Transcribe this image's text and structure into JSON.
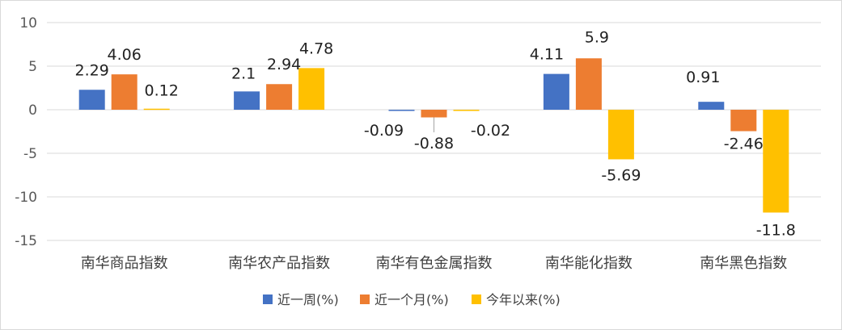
{
  "chart_data": {
    "type": "bar",
    "categories": [
      "南华商品指数",
      "南华农产品指数",
      "南华有色金属指数",
      "南华能化指数",
      "南华黑色指数"
    ],
    "series": [
      {
        "name": "近一周(%)",
        "color": "#4472C4",
        "values": [
          2.29,
          2.1,
          -0.09,
          4.11,
          0.91
        ]
      },
      {
        "name": "近一个月(%)",
        "color": "#ED7D31",
        "values": [
          4.06,
          2.94,
          -0.88,
          5.9,
          -2.46
        ]
      },
      {
        "name": "今年以来(%)",
        "color": "#FFC000",
        "values": [
          0.12,
          4.78,
          -0.02,
          -5.69,
          -11.8
        ]
      }
    ],
    "data_labels": [
      [
        "2.29",
        "2.1",
        "-0.09",
        "4.11",
        "0.91"
      ],
      [
        "4.06",
        "2.94",
        "-0.88",
        "5.9",
        "-2.46"
      ],
      [
        "0.12",
        "4.78",
        "-0.02",
        "-5.69",
        "-11.8"
      ]
    ],
    "yticks": [
      10,
      5,
      0,
      -5,
      -10,
      -15
    ],
    "ylim": [
      -15,
      10
    ],
    "grid": true,
    "legend_position": "bottom"
  }
}
